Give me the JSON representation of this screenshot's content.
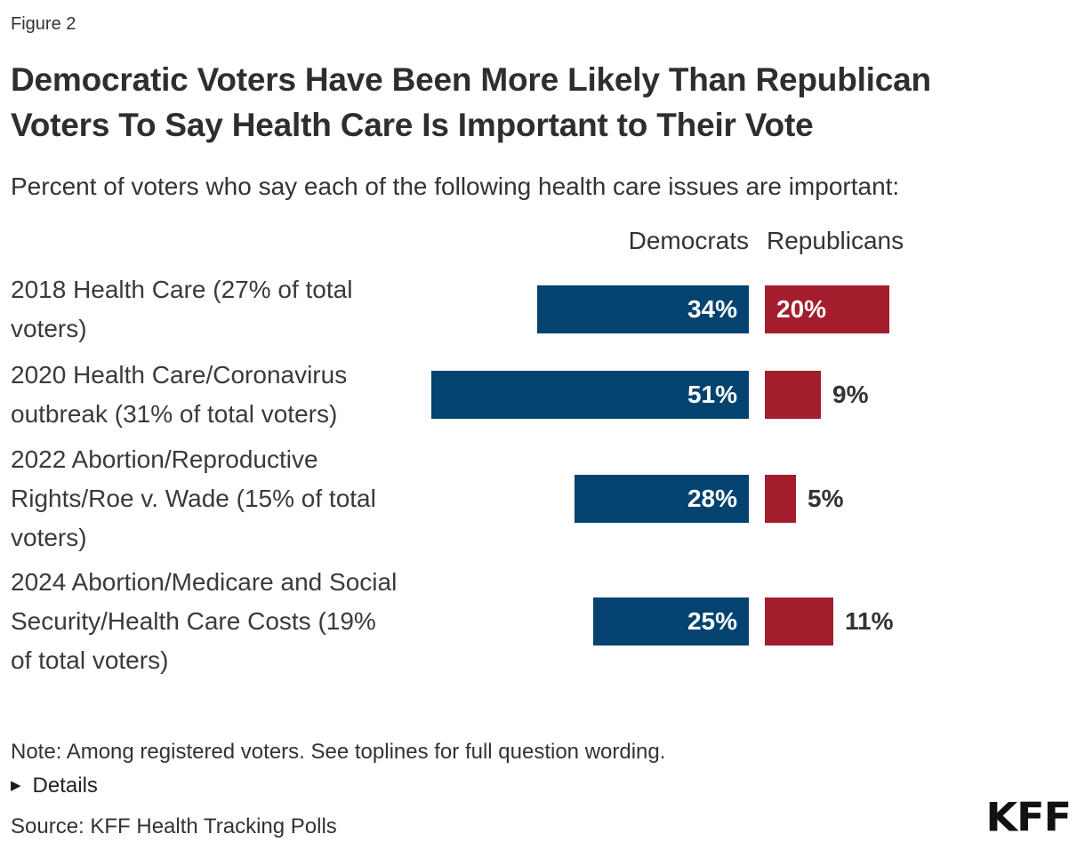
{
  "header": {
    "figure_label": "Figure 2",
    "title_lines": [
      "Democratic Voters Have Been More Likely Than Republican",
      "Voters To Say Health Care Is Important to Their Vote"
    ],
    "subtitle": "Percent of voters who say each of the following health care issues are important:"
  },
  "chart_data": {
    "type": "bar",
    "orientation": "horizontal",
    "unit": "%",
    "categories": [
      "2018 Health Care (27% of total voters)",
      "2020 Health Care/Coronavirus outbreak (31% of total voters)",
      "2022 Abortion/Reproductive Rights/Roe v. Wade (15% of total voters)",
      "2024 Abortion/Medicare and Social Security/Health Care Costs (19% of total voters)"
    ],
    "series": [
      {
        "name": "Democrats",
        "color": "#04436F",
        "values": [
          34,
          51,
          28,
          25
        ]
      },
      {
        "name": "Republicans",
        "color": "#A31D2C",
        "values": [
          20,
          9,
          5,
          11
        ]
      }
    ],
    "xlim": [
      0,
      55
    ],
    "grid": false,
    "legend_position": "column-headers-above-bars",
    "value_label_format": "{value}%"
  },
  "footer": {
    "note": "Note: Among registered voters. See toplines for full question wording.",
    "details_label": "Details",
    "source": "Source: KFF Health Tracking Polls",
    "logo_text": "KFF"
  },
  "colors": {
    "democrat_blue": "#04436F",
    "republican_red": "#A31D2C",
    "text": "#333333"
  }
}
